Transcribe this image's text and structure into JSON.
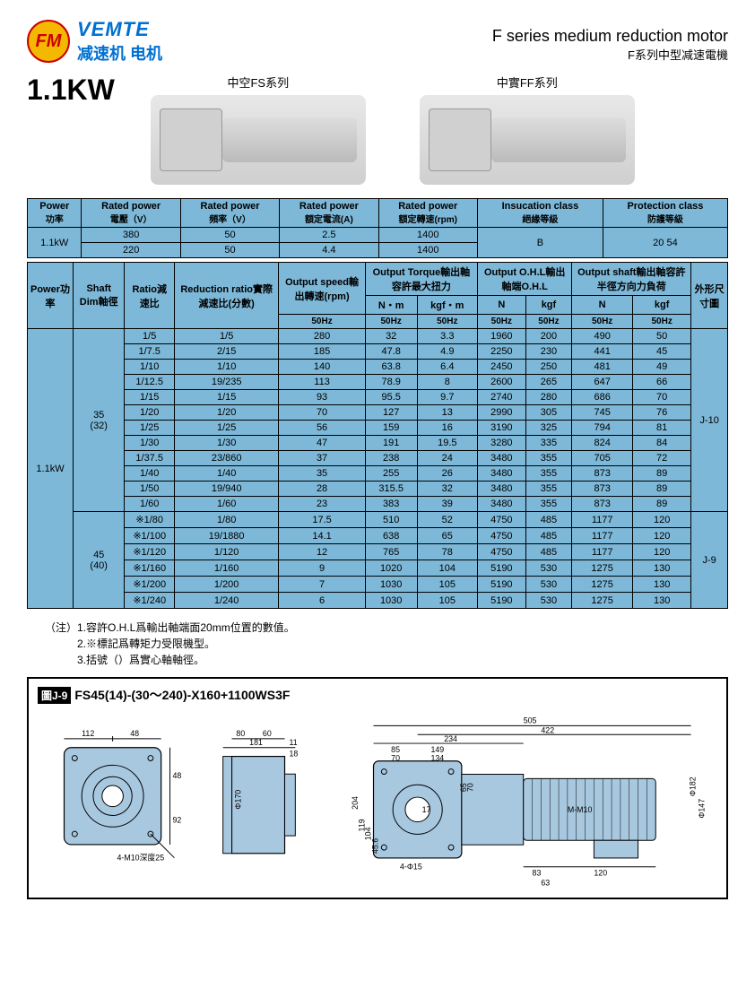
{
  "brand_en": "VEMTE",
  "brand_cn": "减速机 电机",
  "logo_mark": "FM",
  "title_en": "F series medium reduction motor",
  "title_cn": "F系列中型减速電機",
  "kw": "1.1KW",
  "series_fs": "中空FS系列",
  "series_ff": "中實FF系列",
  "table1": {
    "headers": [
      {
        "t": "Power",
        "s": "功率"
      },
      {
        "t": "Rated power",
        "s": "電壓（V）"
      },
      {
        "t": "Rated power",
        "s": "頻率（V）"
      },
      {
        "t": "Rated power",
        "s": "額定電流(A)"
      },
      {
        "t": "Rated power",
        "s": "額定轉速(rpm)"
      },
      {
        "t": "Insucation class",
        "s": "絕緣等級"
      },
      {
        "t": "Protection class",
        "s": "防護等級"
      }
    ],
    "power": "1.1kW",
    "rows": [
      [
        "380",
        "50",
        "2.5",
        "1400"
      ],
      [
        "220",
        "50",
        "4.4",
        "1400"
      ]
    ],
    "insul": "B",
    "prot": "20  54"
  },
  "table2": {
    "headers": {
      "power": {
        "t": "Power",
        "s": "功率"
      },
      "shaft": {
        "t": "Shaft Dim",
        "s": "軸徑"
      },
      "ratio": {
        "t": "Ratio",
        "s": "減速比"
      },
      "reduction": {
        "t": "Reduction ratio",
        "s": "實際減速比",
        "s2": "(分數)"
      },
      "speed": {
        "t": "Output speed",
        "s": "輸出轉速(rpm)"
      },
      "torque": {
        "t": "Output Torque",
        "s": "輸出軸容許最大扭力"
      },
      "ohl": {
        "t": "Output O.H.L",
        "s": "輸出軸端O.H.L"
      },
      "oshaft": {
        "t": "Output shaft",
        "s": "輸出軸容許半徑方向力負荷"
      },
      "dim": "外形尺寸圖",
      "nm": "N・m",
      "kgfm": "kgf・m",
      "n": "N",
      "kgf": "kgf",
      "hz": "50Hz"
    },
    "power_val": "1.1kW",
    "groups": [
      {
        "shaft": "35\n(32)",
        "dim": "J-10",
        "rows": [
          [
            "1/5",
            "1/5",
            "280",
            "32",
            "3.3",
            "1960",
            "200",
            "490",
            "50"
          ],
          [
            "1/7.5",
            "2/15",
            "185",
            "47.8",
            "4.9",
            "2250",
            "230",
            "441",
            "45"
          ],
          [
            "1/10",
            "1/10",
            "140",
            "63.8",
            "6.4",
            "2450",
            "250",
            "481",
            "49"
          ],
          [
            "1/12.5",
            "19/235",
            "113",
            "78.9",
            "8",
            "2600",
            "265",
            "647",
            "66"
          ],
          [
            "1/15",
            "1/15",
            "93",
            "95.5",
            "9.7",
            "2740",
            "280",
            "686",
            "70"
          ],
          [
            "1/20",
            "1/20",
            "70",
            "127",
            "13",
            "2990",
            "305",
            "745",
            "76"
          ],
          [
            "1/25",
            "1/25",
            "56",
            "159",
            "16",
            "3190",
            "325",
            "794",
            "81"
          ],
          [
            "1/30",
            "1/30",
            "47",
            "191",
            "19.5",
            "3280",
            "335",
            "824",
            "84"
          ],
          [
            "1/37.5",
            "23/860",
            "37",
            "238",
            "24",
            "3480",
            "355",
            "705",
            "72"
          ],
          [
            "1/40",
            "1/40",
            "35",
            "255",
            "26",
            "3480",
            "355",
            "873",
            "89"
          ],
          [
            "1/50",
            "19/940",
            "28",
            "315.5",
            "32",
            "3480",
            "355",
            "873",
            "89"
          ],
          [
            "1/60",
            "1/60",
            "23",
            "383",
            "39",
            "3480",
            "355",
            "873",
            "89"
          ]
        ]
      },
      {
        "shaft": "45\n(40)",
        "dim": "J-9",
        "rows": [
          [
            "※1/80",
            "1/80",
            "17.5",
            "510",
            "52",
            "4750",
            "485",
            "1177",
            "120"
          ],
          [
            "※1/100",
            "19/1880",
            "14.1",
            "638",
            "65",
            "4750",
            "485",
            "1177",
            "120"
          ],
          [
            "※1/120",
            "1/120",
            "12",
            "765",
            "78",
            "4750",
            "485",
            "1177",
            "120"
          ],
          [
            "※1/160",
            "1/160",
            "9",
            "1020",
            "104",
            "5190",
            "530",
            "1275",
            "130"
          ],
          [
            "※1/200",
            "1/200",
            "7",
            "1030",
            "105",
            "5190",
            "530",
            "1275",
            "130"
          ],
          [
            "※1/240",
            "1/240",
            "6",
            "1030",
            "105",
            "5190",
            "530",
            "1275",
            "130"
          ]
        ]
      }
    ]
  },
  "notes": [
    "（注）1.容許O.H.L爲輸出軸端面20mm位置的數值。",
    "　　　2.※標記爲轉矩力受限機型。",
    "　　　3.括號（）爲實心軸軸徑。"
  ],
  "drawing": {
    "badge": "圖J-9",
    "model": "FS45(14)-(30～240)-X160+1100WS3F",
    "dims_front": {
      "w": "112",
      "h": "48",
      "bolt": "4-M10深度25",
      "a": "48",
      "b": "92"
    },
    "dims_side": {
      "a": "181",
      "b": "80",
      "c": "60",
      "d": "11",
      "e": "18",
      "f": "Φ170"
    },
    "dims_top": {
      "total": "505",
      "a": "422",
      "b": "234",
      "c": "149",
      "d": "85",
      "e": "134",
      "f": "70",
      "h1": "204",
      "h2": "119",
      "h3": "104",
      "h4": "45.6",
      "g": "65",
      "g2": "70",
      "i": "17",
      "bolt": "4-Φ15",
      "motor": "M-M10",
      "od1": "Φ182",
      "od2": "Φ147",
      "bottom1": "83",
      "bottom2": "120",
      "bottom3": "63"
    }
  },
  "colors": {
    "header_bg": "#7db8d8",
    "brand": "#0070d0",
    "logo_bg": "#f5b800",
    "logo_red": "#c00000",
    "drawing_fill": "#a8c8e0"
  }
}
